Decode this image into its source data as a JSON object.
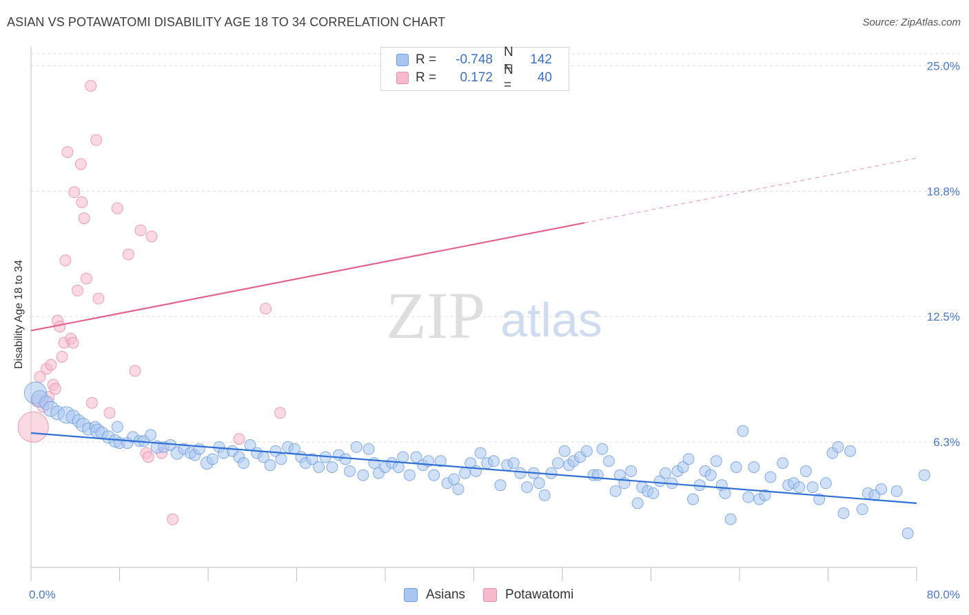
{
  "title": "ASIAN VS POTAWATOMI DISABILITY AGE 18 TO 34 CORRELATION CHART",
  "source": "Source: ZipAtlas.com",
  "watermark": {
    "zip": "ZIP",
    "atlas": "atlas"
  },
  "legend": {
    "r_label": "R =",
    "n_label": "N =",
    "rows": [
      {
        "r": "-0.748",
        "n": "142",
        "fill": "#a9c6f0",
        "stroke": "#6b9ae0"
      },
      {
        "r": "0.172",
        "n": "40",
        "fill": "#f7b9cc",
        "stroke": "#e98aa8"
      }
    ]
  },
  "bottom_legend": [
    {
      "label": "Asians",
      "fill": "#a9c6f0",
      "stroke": "#6b9ae0"
    },
    {
      "label": "Potawatomi",
      "fill": "#f7b9cc",
      "stroke": "#e98aa8"
    }
  ],
  "chart_data": {
    "type": "scatter",
    "title": "ASIAN VS POTAWATOMI DISABILITY AGE 18 TO 34 CORRELATION CHART",
    "xlabel": "",
    "ylabel": "Disability Age 18 to 34",
    "xlim": [
      0,
      80
    ],
    "ylim": [
      0,
      25.6
    ],
    "x_tick_labels": [
      {
        "value": 0,
        "label": "0.0%"
      },
      {
        "value": 80,
        "label": "80.0%"
      }
    ],
    "y_tick_labels": [
      {
        "value": 6.25,
        "label": "6.3%"
      },
      {
        "value": 12.5,
        "label": "12.5%"
      },
      {
        "value": 18.75,
        "label": "18.8%"
      },
      {
        "value": 25.0,
        "label": "25.0%"
      }
    ],
    "x_minor_ticks": [
      0,
      8,
      16,
      24,
      32,
      40,
      48,
      56,
      64,
      72,
      80
    ],
    "grid": "horizontal dashed",
    "series": [
      {
        "name": "Asians",
        "color": "#6b9ae0",
        "fill": "#a9c6f0",
        "trend": {
          "x0": 0,
          "y0": 6.7,
          "x1": 80,
          "y1": 3.2,
          "dash_from": null
        },
        "points": [
          [
            0.4,
            8.7,
            16
          ],
          [
            0.8,
            8.4,
            12
          ],
          [
            1.4,
            8.2,
            10
          ],
          [
            1.8,
            7.9,
            11
          ],
          [
            2.4,
            7.7,
            10
          ],
          [
            3.2,
            7.6,
            12
          ],
          [
            3.8,
            7.5,
            10
          ],
          [
            4.3,
            7.3,
            9
          ],
          [
            4.7,
            7.1,
            10
          ],
          [
            5.2,
            6.9,
            9
          ],
          [
            5.8,
            7.0,
            8
          ],
          [
            6.0,
            6.8,
            10
          ],
          [
            6.4,
            6.7,
            9
          ],
          [
            7.0,
            6.5,
            9
          ],
          [
            7.6,
            6.3,
            9
          ],
          [
            8.0,
            6.2,
            8
          ],
          [
            7.8,
            7.0,
            8
          ],
          [
            8.7,
            6.2,
            8
          ],
          [
            9.2,
            6.5,
            8
          ],
          [
            9.8,
            6.3,
            8
          ],
          [
            10.2,
            6.3,
            8
          ],
          [
            10.8,
            6.6,
            8
          ],
          [
            11.4,
            6.0,
            9
          ],
          [
            12.0,
            6.0,
            8
          ],
          [
            12.6,
            6.1,
            8
          ],
          [
            13.2,
            5.7,
            9
          ],
          [
            13.8,
            5.9,
            8
          ],
          [
            14.4,
            5.7,
            8
          ],
          [
            14.8,
            5.6,
            8
          ],
          [
            15.2,
            5.9,
            8
          ],
          [
            15.9,
            5.2,
            9
          ],
          [
            16.4,
            5.4,
            8
          ],
          [
            17.0,
            6.0,
            8
          ],
          [
            17.4,
            5.7,
            8
          ],
          [
            18.2,
            5.8,
            8
          ],
          [
            18.8,
            5.5,
            8
          ],
          [
            19.2,
            5.2,
            8
          ],
          [
            19.8,
            6.1,
            8
          ],
          [
            20.4,
            5.7,
            8
          ],
          [
            21.0,
            5.5,
            8
          ],
          [
            21.6,
            5.1,
            8
          ],
          [
            22.1,
            5.8,
            8
          ],
          [
            22.6,
            5.4,
            8
          ],
          [
            23.2,
            6.0,
            8
          ],
          [
            23.8,
            5.9,
            8
          ],
          [
            24.4,
            5.5,
            8
          ],
          [
            24.8,
            5.2,
            8
          ],
          [
            25.4,
            5.4,
            8
          ],
          [
            26.0,
            5.0,
            8
          ],
          [
            26.6,
            5.5,
            8
          ],
          [
            27.2,
            5.0,
            8
          ],
          [
            27.8,
            5.6,
            8
          ],
          [
            28.4,
            5.4,
            8
          ],
          [
            28.8,
            4.8,
            8
          ],
          [
            29.4,
            6.0,
            8
          ],
          [
            30.0,
            4.6,
            8
          ],
          [
            30.5,
            5.9,
            8
          ],
          [
            31.0,
            5.2,
            8
          ],
          [
            31.4,
            4.7,
            8
          ],
          [
            32.0,
            5.0,
            8
          ],
          [
            32.6,
            5.2,
            8
          ],
          [
            33.2,
            5.0,
            8
          ],
          [
            33.6,
            5.5,
            8
          ],
          [
            34.2,
            4.6,
            8
          ],
          [
            34.8,
            5.5,
            8
          ],
          [
            35.4,
            5.1,
            8
          ],
          [
            35.9,
            5.3,
            8
          ],
          [
            36.4,
            4.6,
            8
          ],
          [
            37.0,
            5.3,
            8
          ],
          [
            37.6,
            4.2,
            8
          ],
          [
            38.2,
            4.4,
            8
          ],
          [
            38.6,
            3.9,
            8
          ],
          [
            39.2,
            4.7,
            8
          ],
          [
            39.7,
            5.2,
            8
          ],
          [
            40.2,
            4.8,
            8
          ],
          [
            40.6,
            5.7,
            8
          ],
          [
            41.2,
            5.2,
            8
          ],
          [
            41.8,
            5.3,
            8
          ],
          [
            42.4,
            4.1,
            8
          ],
          [
            43.0,
            5.1,
            8
          ],
          [
            43.6,
            5.2,
            8
          ],
          [
            44.2,
            4.7,
            8
          ],
          [
            44.8,
            4.0,
            8
          ],
          [
            45.4,
            4.7,
            8
          ],
          [
            45.9,
            4.2,
            8
          ],
          [
            46.4,
            3.6,
            8
          ],
          [
            47.0,
            4.7,
            8
          ],
          [
            47.6,
            5.2,
            8
          ],
          [
            48.2,
            5.8,
            8
          ],
          [
            48.6,
            5.1,
            8
          ],
          [
            49.0,
            5.3,
            8
          ],
          [
            49.6,
            5.5,
            8
          ],
          [
            50.2,
            5.8,
            8
          ],
          [
            50.8,
            4.6,
            8
          ],
          [
            51.2,
            4.6,
            8
          ],
          [
            51.6,
            5.9,
            8
          ],
          [
            52.2,
            5.3,
            8
          ],
          [
            52.8,
            3.8,
            8
          ],
          [
            53.2,
            4.6,
            8
          ],
          [
            53.6,
            4.2,
            8
          ],
          [
            54.2,
            4.8,
            8
          ],
          [
            54.8,
            3.2,
            8
          ],
          [
            55.2,
            4.0,
            8
          ],
          [
            55.7,
            3.8,
            8
          ],
          [
            56.2,
            3.7,
            8
          ],
          [
            56.8,
            4.3,
            8
          ],
          [
            57.3,
            4.7,
            8
          ],
          [
            57.9,
            4.2,
            8
          ],
          [
            58.4,
            4.8,
            8
          ],
          [
            58.9,
            5.0,
            8
          ],
          [
            59.4,
            5.4,
            8
          ],
          [
            59.8,
            3.4,
            8
          ],
          [
            60.4,
            4.1,
            8
          ],
          [
            60.9,
            4.8,
            8
          ],
          [
            61.4,
            4.6,
            8
          ],
          [
            61.9,
            5.3,
            8
          ],
          [
            62.4,
            4.1,
            8
          ],
          [
            62.7,
            3.7,
            8
          ],
          [
            63.2,
            2.4,
            8
          ],
          [
            63.7,
            5.0,
            8
          ],
          [
            64.3,
            6.8,
            8
          ],
          [
            64.8,
            3.5,
            8
          ],
          [
            65.3,
            5.0,
            8
          ],
          [
            65.8,
            3.4,
            8
          ],
          [
            66.3,
            3.6,
            8
          ],
          [
            66.8,
            4.5,
            8
          ],
          [
            67.9,
            5.2,
            8
          ],
          [
            68.4,
            4.1,
            8
          ],
          [
            68.9,
            4.2,
            8
          ],
          [
            69.4,
            4.0,
            8
          ],
          [
            70.0,
            4.8,
            8
          ],
          [
            70.6,
            4.0,
            8
          ],
          [
            71.2,
            3.4,
            8
          ],
          [
            71.8,
            4.2,
            8
          ],
          [
            72.4,
            5.7,
            8
          ],
          [
            72.9,
            6.0,
            8
          ],
          [
            73.4,
            2.7,
            8
          ],
          [
            74.0,
            5.8,
            8
          ],
          [
            75.1,
            2.9,
            8
          ],
          [
            75.6,
            3.7,
            8
          ],
          [
            76.2,
            3.6,
            8
          ],
          [
            76.8,
            3.9,
            8
          ],
          [
            78.2,
            3.8,
            8
          ],
          [
            79.2,
            1.7,
            8
          ],
          [
            80.7,
            4.6,
            8
          ]
        ]
      },
      {
        "name": "Potawatomi",
        "color": "#e98aa8",
        "fill": "#f7b9cc",
        "trend": {
          "x0": 0,
          "y0": 11.8,
          "x1": 80,
          "y1": 20.4,
          "dash_from": 50
        },
        "points": [
          [
            0.2,
            7.0,
            22
          ],
          [
            0.6,
            8.3,
            9
          ],
          [
            0.8,
            9.5,
            8
          ],
          [
            1.1,
            8.0,
            8
          ],
          [
            1.4,
            9.9,
            8
          ],
          [
            1.6,
            8.5,
            8
          ],
          [
            1.8,
            10.1,
            8
          ],
          [
            2.0,
            9.1,
            8
          ],
          [
            2.2,
            8.9,
            8
          ],
          [
            2.4,
            12.3,
            8
          ],
          [
            2.6,
            12.0,
            8
          ],
          [
            2.8,
            10.5,
            8
          ],
          [
            3.0,
            11.2,
            8
          ],
          [
            3.1,
            15.3,
            8
          ],
          [
            3.3,
            20.7,
            8
          ],
          [
            3.6,
            11.4,
            8
          ],
          [
            3.8,
            11.2,
            8
          ],
          [
            3.9,
            18.7,
            8
          ],
          [
            4.2,
            13.8,
            8
          ],
          [
            4.5,
            20.1,
            8
          ],
          [
            4.6,
            18.2,
            8
          ],
          [
            4.8,
            17.4,
            8
          ],
          [
            5.0,
            14.4,
            8
          ],
          [
            5.4,
            24.0,
            8
          ],
          [
            5.5,
            8.2,
            8
          ],
          [
            5.9,
            21.3,
            8
          ],
          [
            6.1,
            13.4,
            8
          ],
          [
            7.1,
            7.7,
            8
          ],
          [
            7.8,
            17.9,
            8
          ],
          [
            8.8,
            15.6,
            8
          ],
          [
            9.4,
            9.8,
            8
          ],
          [
            9.9,
            16.8,
            8
          ],
          [
            10.4,
            5.7,
            8
          ],
          [
            10.6,
            5.5,
            8
          ],
          [
            10.9,
            16.5,
            8
          ],
          [
            11.8,
            5.7,
            8
          ],
          [
            12.8,
            2.4,
            8
          ],
          [
            18.8,
            6.4,
            8
          ],
          [
            21.2,
            12.9,
            8
          ],
          [
            22.5,
            7.7,
            8
          ]
        ]
      }
    ]
  }
}
